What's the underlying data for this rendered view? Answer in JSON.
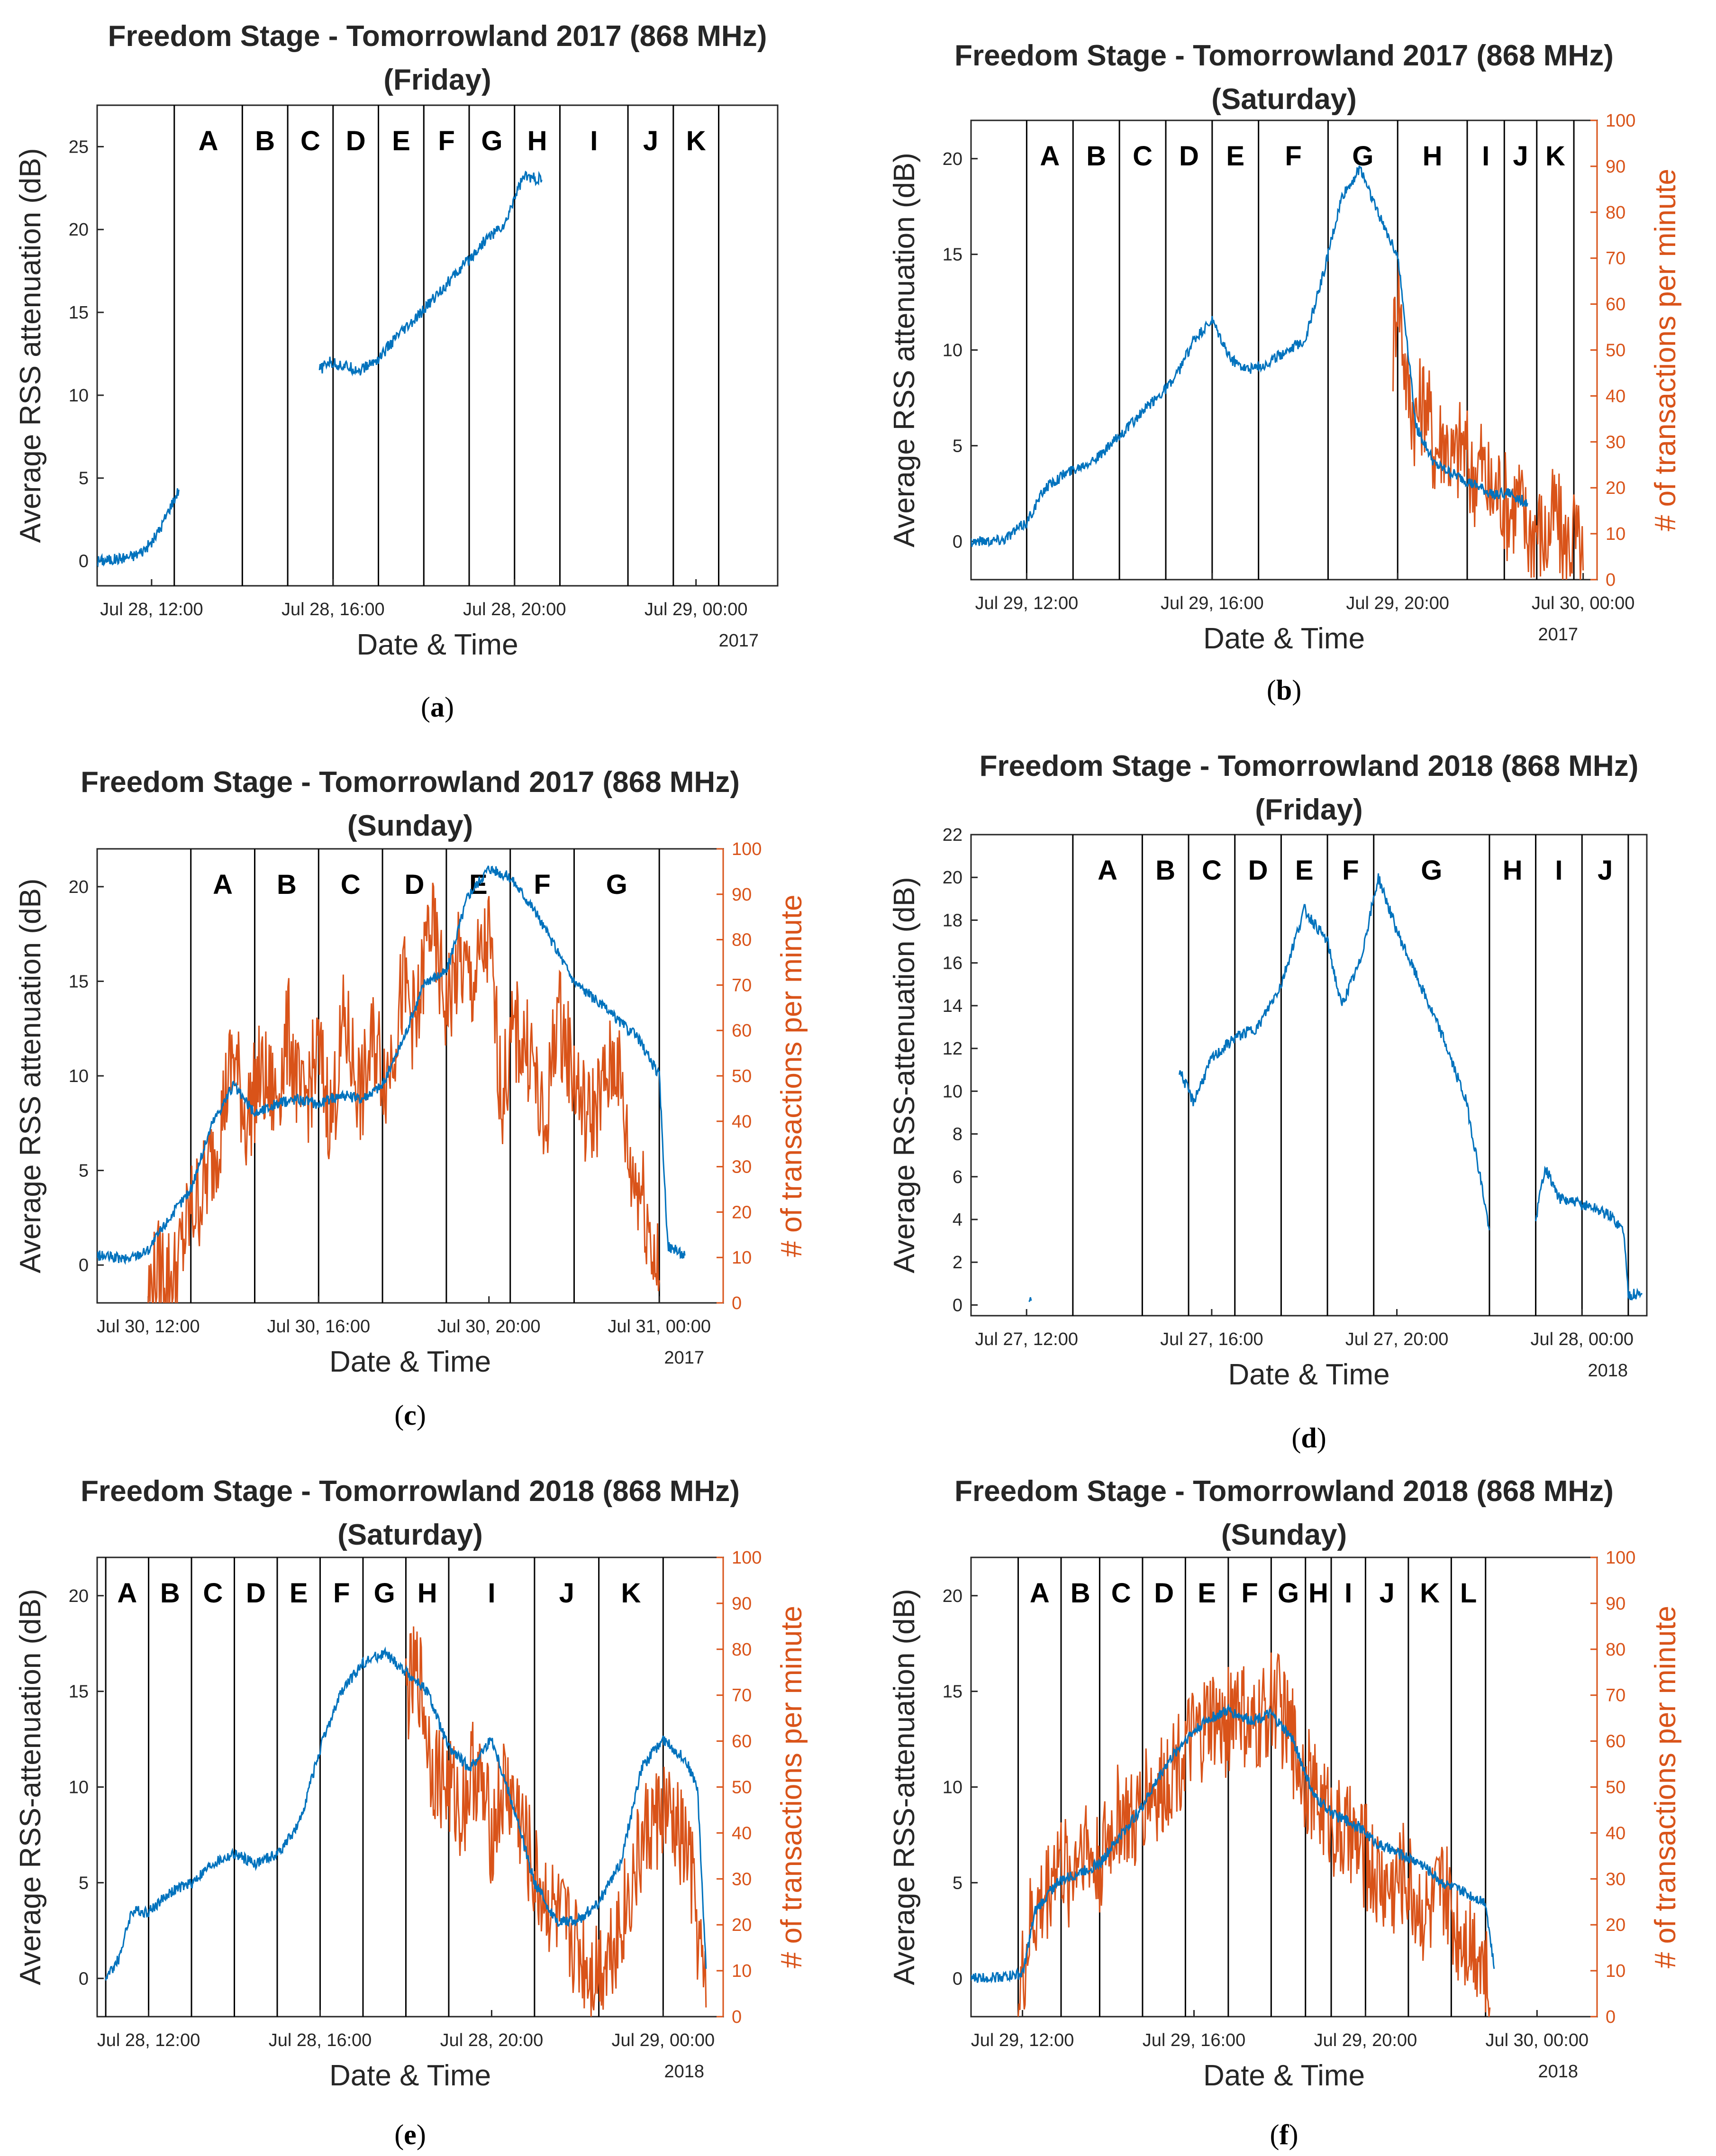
{
  "colors": {
    "rss": "#0072bd",
    "transactions": "#d95319",
    "axis": "#262626",
    "divider": "#000000"
  },
  "chart_data": [
    {
      "id": "a",
      "type": "line",
      "caption": "a",
      "title": "Freedom Stage - Tomorrowland 2017 (868 MHz)",
      "subtitle": "(Friday)",
      "xlabel": "Date & Time",
      "ylabel": "Average RSS attenuation (dB)",
      "y2label": "",
      "year_label": "2017",
      "x_range": [
        10.8,
        25.8
      ],
      "xticks": [
        {
          "x": 12,
          "label": "Jul 28, 12:00"
        },
        {
          "x": 16,
          "label": "Jul 28, 16:00"
        },
        {
          "x": 20,
          "label": "Jul 28, 20:00"
        },
        {
          "x": 24,
          "label": "Jul 29, 00:00"
        }
      ],
      "ylim": [
        -1.5,
        27.5
      ],
      "yticks": [
        0,
        5,
        10,
        15,
        20,
        25
      ],
      "y2lim": null,
      "y2ticks": [],
      "dividers": [
        12.5,
        14.0,
        15.0,
        16.0,
        17.0,
        18.0,
        19.0,
        20.0,
        21.0,
        22.5,
        23.5,
        24.5
      ],
      "segments": [
        "A",
        "B",
        "C",
        "D",
        "E",
        "F",
        "G",
        "H",
        "I",
        "J",
        "K"
      ],
      "rss_series": [
        {
          "x": [
            10.8,
            11.2,
            11.6,
            11.8,
            12.0,
            12.2,
            12.4,
            12.6
          ],
          "y": [
            0.0,
            0.1,
            0.3,
            0.6,
            1.1,
            2.0,
            3.2,
            4.3
          ]
        },
        {
          "x": [
            15.7,
            15.9,
            16.2,
            16.6,
            17.0,
            17.4,
            17.8,
            18.2,
            18.6,
            19.0,
            19.4,
            19.8,
            20.0,
            20.2,
            20.6
          ],
          "y": [
            11.5,
            12.0,
            11.8,
            11.5,
            12.2,
            13.5,
            14.5,
            15.8,
            17.0,
            18.2,
            19.5,
            20.3,
            22.0,
            23.2,
            23.0
          ]
        }
      ],
      "tx_series": null
    },
    {
      "id": "b",
      "type": "line",
      "caption": "b",
      "title": "Freedom Stage - Tomorrowland 2017 (868 MHz)",
      "subtitle": "(Saturday)",
      "xlabel": "Date & Time",
      "ylabel": "Average RSS attenuation (dB)",
      "y2label": "# of transactions per minute",
      "year_label": "2017",
      "x_range": [
        10.8,
        24.3
      ],
      "xticks": [
        {
          "x": 12,
          "label": "Jul 29, 12:00"
        },
        {
          "x": 16,
          "label": "Jul 29, 16:00"
        },
        {
          "x": 20,
          "label": "Jul 29, 20:00"
        },
        {
          "x": 24,
          "label": "Jul 30, 00:00"
        }
      ],
      "ylim": [
        -2,
        22
      ],
      "yticks": [
        0,
        5,
        10,
        15,
        20
      ],
      "y2lim": [
        0,
        100
      ],
      "y2ticks": [
        0,
        10,
        20,
        30,
        40,
        50,
        60,
        70,
        80,
        90,
        100
      ],
      "dividers": [
        12.0,
        13.0,
        14.0,
        15.0,
        16.0,
        17.0,
        18.5,
        20.0,
        21.5,
        22.3,
        23.0,
        23.8
      ],
      "segments": [
        "A",
        "B",
        "C",
        "D",
        "E",
        "F",
        "G",
        "H",
        "I",
        "J",
        "K"
      ],
      "rss_series": [
        {
          "x": [
            10.8,
            11.5,
            12.0,
            12.4,
            12.8,
            13.2,
            13.6,
            14.0,
            14.4,
            14.8,
            15.2,
            15.6,
            16.0,
            16.4,
            16.8,
            17.2,
            17.6,
            18.0,
            18.4,
            18.8,
            19.2,
            19.6,
            20.0,
            20.4,
            20.8,
            21.2,
            21.6,
            22.0,
            22.4,
            22.8
          ],
          "y": [
            0.0,
            0.1,
            1.0,
            2.8,
            3.5,
            4.0,
            4.5,
            5.5,
            6.5,
            7.5,
            8.5,
            10.5,
            11.5,
            9.5,
            9.0,
            9.3,
            10.0,
            10.5,
            14.0,
            18.0,
            19.5,
            17.0,
            15.0,
            6.0,
            4.0,
            3.5,
            3.0,
            2.5,
            2.5,
            2.0
          ]
        }
      ],
      "tx_series": {
        "x": [
          19.9,
          20.0,
          20.2,
          20.4,
          20.6,
          20.8,
          21.0,
          21.2,
          21.4,
          21.6,
          21.8,
          22.0,
          22.2,
          22.4,
          22.6,
          22.8,
          23.0,
          23.2,
          23.4,
          23.6,
          23.8,
          24.0
        ],
        "y": [
          50,
          65,
          42,
          35,
          40,
          28,
          32,
          25,
          30,
          22,
          26,
          18,
          20,
          15,
          18,
          10,
          12,
          8,
          15,
          6,
          10,
          2
        ]
      }
    },
    {
      "id": "c",
      "type": "line",
      "caption": "c",
      "title": "Freedom Stage - Tomorrowland 2017 (868 MHz)",
      "subtitle": "(Sunday)",
      "xlabel": "Date & Time",
      "ylabel": "Average RSS attenuation (dB)",
      "y2label": "# of transactions per minute",
      "year_label": "2017",
      "x_range": [
        10.8,
        25.5
      ],
      "xticks": [
        {
          "x": 12,
          "label": "Jul 30, 12:00"
        },
        {
          "x": 16,
          "label": "Jul 30, 16:00"
        },
        {
          "x": 20,
          "label": "Jul 30, 20:00"
        },
        {
          "x": 24,
          "label": "Jul 31, 00:00"
        }
      ],
      "ylim": [
        -2,
        22
      ],
      "yticks": [
        0,
        5,
        10,
        15,
        20
      ],
      "y2lim": [
        0,
        100
      ],
      "y2ticks": [
        0,
        10,
        20,
        30,
        40,
        50,
        60,
        70,
        80,
        90,
        100
      ],
      "dividers": [
        13.0,
        14.5,
        16.0,
        17.5,
        19.0,
        20.5,
        22.0,
        24.0
      ],
      "segments": [
        "A",
        "B",
        "C",
        "D",
        "E",
        "F",
        "G"
      ],
      "rss_series": [
        {
          "x": [
            10.8,
            11.5,
            12.0,
            12.5,
            13.0,
            13.5,
            14.0,
            14.5,
            15.0,
            15.5,
            16.0,
            16.5,
            17.0,
            17.5,
            18.0,
            18.5,
            19.0,
            19.5,
            20.0,
            20.5,
            21.0,
            21.5,
            22.0,
            22.5,
            23.0,
            23.5,
            24.0,
            24.2,
            24.6
          ],
          "y": [
            0.5,
            0.3,
            0.8,
            2.5,
            4.0,
            7.5,
            9.5,
            8.0,
            8.5,
            8.8,
            8.5,
            9.0,
            8.8,
            9.5,
            12.0,
            15.0,
            15.5,
            19.5,
            21.0,
            20.5,
            19.0,
            17.0,
            15.0,
            14.0,
            13.0,
            12.0,
            10.0,
            1.0,
            0.5
          ]
        }
      ],
      "tx_series": {
        "x": [
          12.0,
          12.3,
          12.6,
          13.0,
          13.3,
          13.6,
          14.0,
          14.3,
          14.6,
          15.0,
          15.3,
          15.6,
          16.0,
          16.3,
          16.6,
          17.0,
          17.3,
          17.6,
          18.0,
          18.3,
          18.6,
          19.0,
          19.3,
          19.6,
          20.0,
          20.3,
          20.6,
          21.0,
          21.3,
          21.6,
          22.0,
          22.3,
          22.6,
          23.0,
          23.3,
          23.6,
          24.0
        ],
        "y": [
          2,
          8,
          5,
          20,
          25,
          35,
          55,
          40,
          50,
          45,
          60,
          42,
          55,
          40,
          62,
          45,
          58,
          50,
          70,
          60,
          85,
          65,
          75,
          70,
          80,
          45,
          60,
          55,
          35,
          65,
          50,
          40,
          45,
          55,
          30,
          25,
          5
        ]
      }
    },
    {
      "id": "d",
      "type": "line",
      "caption": "d",
      "title": "Freedom Stage - Tomorrowland 2018 (868 MHz)",
      "subtitle": "(Friday)",
      "xlabel": "Date & Time",
      "ylabel": "Average RSS-attenuation (dB)",
      "y2label": "",
      "year_label": "2018",
      "x_range": [
        10.8,
        25.4
      ],
      "xticks": [
        {
          "x": 12,
          "label": "Jul 27, 12:00"
        },
        {
          "x": 16,
          "label": "Jul 27, 16:00"
        },
        {
          "x": 20,
          "label": "Jul 27, 20:00"
        },
        {
          "x": 24,
          "label": "Jul 28, 00:00"
        }
      ],
      "ylim": [
        -0.5,
        22
      ],
      "yticks": [
        0,
        2,
        4,
        6,
        8,
        10,
        12,
        14,
        16,
        18,
        20,
        22
      ],
      "y2lim": null,
      "y2ticks": [],
      "dividers": [
        13.0,
        14.5,
        15.5,
        16.5,
        17.5,
        18.5,
        19.5,
        22.0,
        23.0,
        24.0,
        25.0
      ],
      "segments": [
        "A",
        "B",
        "C",
        "D",
        "E",
        "F",
        "G",
        "H",
        "I",
        "J"
      ],
      "rss_series": [
        {
          "x": [
            12.05,
            12.1
          ],
          "y": [
            0.0,
            0.2
          ]
        },
        {
          "x": [
            15.3,
            15.6,
            16.0,
            16.5,
            17.0,
            17.5,
            18.0,
            18.5,
            18.8,
            19.2,
            19.6,
            20.0,
            20.5,
            21.0,
            21.5,
            21.8,
            22.0
          ],
          "y": [
            11.0,
            9.5,
            11.5,
            12.5,
            13.0,
            15.0,
            18.5,
            17.0,
            14.0,
            16.0,
            20.0,
            17.5,
            15.0,
            12.5,
            9.5,
            6.0,
            3.5
          ]
        },
        {
          "x": [
            23.0,
            23.2,
            23.5,
            23.8,
            24.2,
            24.6,
            24.9,
            25.0,
            25.3
          ],
          "y": [
            4.0,
            6.5,
            5.0,
            4.8,
            4.6,
            4.2,
            3.5,
            0.5,
            0.5
          ]
        }
      ],
      "tx_series": null
    },
    {
      "id": "e",
      "type": "line",
      "caption": "e",
      "title": "Freedom Stage - Tomorrowland 2018 (868 MHz)",
      "subtitle": "(Saturday)",
      "xlabel": "Date & Time",
      "ylabel": "Average RSS-attenuation (dB)",
      "y2label": "# of transactions per minute",
      "year_label": "2018",
      "x_range": [
        10.8,
        25.4
      ],
      "xticks": [
        {
          "x": 12,
          "label": "Jul 28, 12:00"
        },
        {
          "x": 16,
          "label": "Jul 28, 16:00"
        },
        {
          "x": 20,
          "label": "Jul 28, 20:00"
        },
        {
          "x": 24,
          "label": "Jul 29, 00:00"
        }
      ],
      "ylim": [
        -2,
        22
      ],
      "yticks": [
        0,
        5,
        10,
        15,
        20
      ],
      "y2lim": [
        0,
        100
      ],
      "y2ticks": [
        0,
        10,
        20,
        30,
        40,
        50,
        60,
        70,
        80,
        90,
        100
      ],
      "dividers": [
        11.0,
        12.0,
        13.0,
        14.0,
        15.0,
        16.0,
        17.0,
        18.0,
        19.0,
        21.0,
        22.5,
        24.0
      ],
      "segments": [
        "A",
        "B",
        "C",
        "D",
        "E",
        "F",
        "G",
        "H",
        "I",
        "J",
        "K"
      ],
      "rss_series": [
        {
          "x": [
            11.0,
            11.3,
            11.6,
            12.0,
            12.5,
            13.0,
            13.5,
            14.0,
            14.5,
            15.0,
            15.5,
            16.0,
            16.5,
            17.0,
            17.5,
            18.0,
            18.5,
            19.0,
            19.5,
            20.0,
            20.5,
            21.0,
            21.5,
            22.0,
            22.5,
            23.0,
            23.5,
            24.0,
            24.5,
            24.8,
            25.0
          ],
          "y": [
            0.0,
            1.0,
            3.5,
            3.5,
            4.5,
            5.0,
            6.0,
            6.5,
            6.0,
            6.5,
            8.0,
            12.0,
            15.0,
            16.5,
            17.0,
            16.0,
            15.0,
            12.0,
            11.0,
            12.5,
            9.0,
            5.0,
            3.0,
            3.0,
            4.0,
            6.0,
            11.0,
            12.5,
            11.5,
            10.0,
            0.5
          ]
        }
      ],
      "tx_series": {
        "x": [
          18.0,
          18.3,
          18.6,
          19.0,
          19.3,
          19.6,
          20.0,
          20.3,
          20.6,
          21.0,
          21.3,
          21.6,
          22.0,
          22.3,
          22.6,
          23.0,
          23.3,
          23.6,
          24.0,
          24.3,
          24.6,
          25.0
        ],
        "y": [
          70,
          75,
          55,
          50,
          45,
          55,
          40,
          50,
          45,
          30,
          25,
          20,
          15,
          10,
          12,
          20,
          30,
          40,
          45,
          40,
          35,
          2
        ]
      }
    },
    {
      "id": "f",
      "type": "line",
      "caption": "f",
      "title": "Freedom Stage - Tomorrowland 2018 (868 MHz)",
      "subtitle": "(Sunday)",
      "xlabel": "Date & Time",
      "ylabel": "Average RSS-attenuation (dB)",
      "y2label": "# of transactions per minute",
      "year_label": "2018",
      "x_range": [
        10.8,
        25.4
      ],
      "xticks": [
        {
          "x": 12,
          "label": "Jul 29, 12:00"
        },
        {
          "x": 16,
          "label": "Jul 29, 16:00"
        },
        {
          "x": 20,
          "label": "Jul 29, 20:00"
        },
        {
          "x": 24,
          "label": "Jul 30, 00:00"
        }
      ],
      "ylim": [
        -2,
        22
      ],
      "yticks": [
        0,
        5,
        10,
        15,
        20
      ],
      "y2lim": [
        0,
        100
      ],
      "y2ticks": [
        0,
        10,
        20,
        30,
        40,
        50,
        60,
        70,
        80,
        90,
        100
      ],
      "dividers": [
        11.9,
        12.9,
        13.8,
        14.8,
        15.8,
        16.8,
        17.8,
        18.6,
        19.2,
        20.0,
        21.0,
        22.0,
        22.8
      ],
      "segments": [
        "A",
        "B",
        "C",
        "D",
        "E",
        "F",
        "G",
        "H",
        "I",
        "J",
        "K",
        "L"
      ],
      "rss_series": [
        {
          "x": [
            10.8,
            11.5,
            12.0,
            12.3,
            12.8,
            13.3,
            13.8,
            14.3,
            14.8,
            15.3,
            15.8,
            16.3,
            16.8,
            17.3,
            17.8,
            18.3,
            18.8,
            19.3,
            19.8,
            20.3,
            20.8,
            21.3,
            21.8,
            22.3,
            22.8,
            23.0
          ],
          "y": [
            0.0,
            0.1,
            0.2,
            3.5,
            5.0,
            5.5,
            6.0,
            7.5,
            9.0,
            11.0,
            12.5,
            13.5,
            14.0,
            13.5,
            13.8,
            12.5,
            9.5,
            8.5,
            8.0,
            7.0,
            6.5,
            6.0,
            5.0,
            4.5,
            4.0,
            0.5
          ]
        }
      ],
      "tx_series": {
        "x": [
          11.9,
          12.2,
          12.5,
          12.8,
          13.1,
          13.4,
          13.7,
          14.0,
          14.3,
          14.6,
          14.9,
          15.2,
          15.5,
          15.8,
          16.1,
          16.4,
          16.7,
          17.0,
          17.3,
          17.6,
          17.9,
          18.2,
          18.5,
          18.8,
          19.1,
          19.4,
          19.7,
          20.0,
          20.3,
          20.6,
          20.9,
          21.2,
          21.5,
          21.8,
          22.1,
          22.4,
          22.7,
          22.9
        ],
        "y": [
          2,
          20,
          25,
          35,
          30,
          40,
          32,
          38,
          45,
          40,
          50,
          48,
          55,
          58,
          60,
          65,
          62,
          70,
          60,
          65,
          70,
          62,
          55,
          48,
          45,
          40,
          38,
          35,
          30,
          28,
          32,
          25,
          22,
          28,
          20,
          18,
          15,
          2
        ]
      }
    }
  ]
}
